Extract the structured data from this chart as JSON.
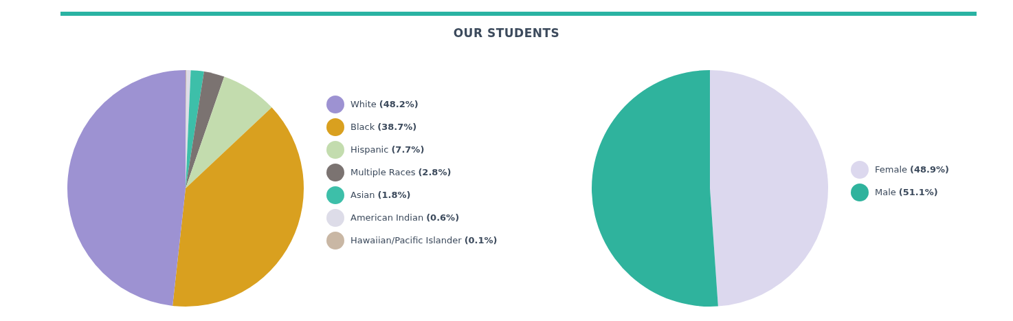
{
  "chart_data": [
    {
      "type": "pie",
      "title": "OUR STUDENTS",
      "legend": "right",
      "categories": [
        "White",
        "Black",
        "Hispanic",
        "Multiple Races",
        "Asian",
        "American Indian",
        "Hawaiian/Pacific Islander"
      ],
      "values": [
        48.2,
        38.7,
        7.7,
        2.8,
        1.8,
        0.6,
        0.1
      ],
      "value_labels": [
        "(48.2%)",
        "(38.7%)",
        "(7.7%)",
        "(2.8%)",
        "(1.8%)",
        "(0.6%)",
        "(0.1%)"
      ],
      "colors": [
        "#9d92d2",
        "#d9a01f",
        "#c3dcae",
        "#7b7371",
        "#3dbfa9",
        "#dddce8",
        "#c9b7a4"
      ]
    },
    {
      "type": "pie",
      "legend": "right",
      "categories": [
        "Female",
        "Male"
      ],
      "values": [
        48.9,
        51.1
      ],
      "value_labels": [
        "(48.9%)",
        "(51.1%)"
      ],
      "colors": [
        "#dcd8ee",
        "#2fb39d"
      ]
    }
  ]
}
